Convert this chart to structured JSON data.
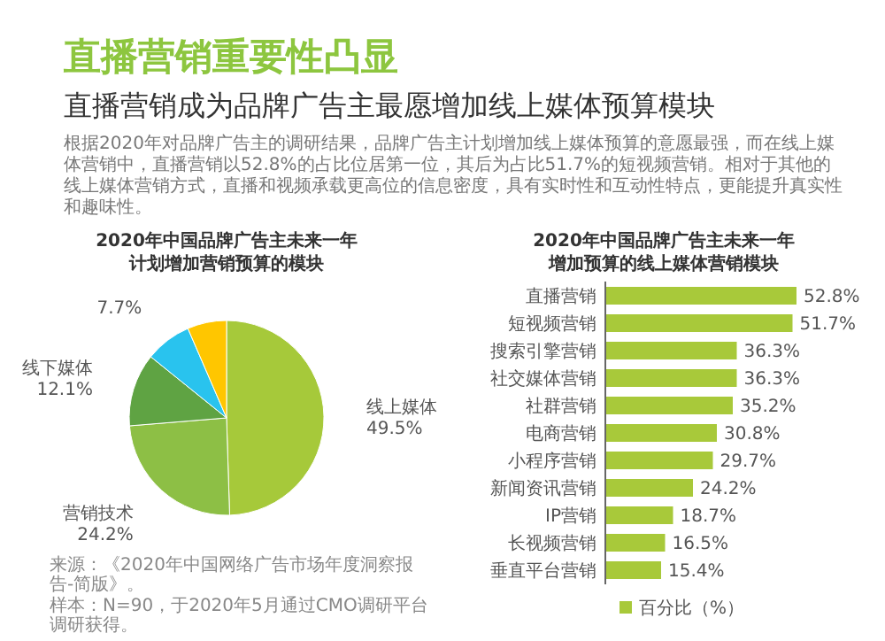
{
  "chart_data": [
    {
      "type": "other",
      "title": "直播营销重要性凸显",
      "subtitle": "直播营销成为品牌广告主最愿增加线上媒体预算模块",
      "annotations": [
        "根据2020年对品牌广告主的调研结果，品牌广告主计划增加线上媒体预算的意愿最强，而在线上媒体营销中，直播营销以52.8%的占比位居第一位，其后为占比51.7%的短视频营销。相对于其他的线上媒体营销方式，直播和视频承载更高位的信息密度，具有实时性和互动性特点，更能提升真实性和趣味性。"
      ]
    },
    {
      "type": "pie",
      "title": "2020年中国品牌广告主未来一年计划增加营销预算的模块",
      "categories": [
        "线上媒体",
        "营销技术",
        "线下媒体",
        null,
        null
      ],
      "values": [
        49.5,
        24.2,
        12.1,
        7.7,
        6.5
      ],
      "colors": [
        "#a6c93a",
        "#8dbf45",
        "#5fa343",
        "#29c3ee",
        "#ffc600"
      ],
      "value_labels": [
        "49.5%",
        "24.2%",
        "12.1%",
        "7.7%",
        null
      ],
      "annotations": [
        "来源：《2020年中国网络广告市场年度洞察报告-简版》。",
        "样本：N=90，于2020年5月通过CMO调研平台调研获得。"
      ]
    },
    {
      "type": "bar",
      "orientation": "horizontal",
      "title": "2020年中国品牌广告主未来一年增加预算的线上媒体营销模块",
      "categories": [
        "直播营销",
        "短视频营销",
        "搜索引擎营销",
        "社交媒体营销",
        "社群营销",
        "电商营销",
        "小程序营销",
        "新闻资讯营销",
        "IP营销",
        "长视频营销",
        "垂直平台营销"
      ],
      "legend": "bottom",
      "series": [
        {
          "name": "百分比（%）",
          "color": "#a8c93a",
          "values": [
            52.8,
            51.7,
            36.3,
            36.3,
            35.2,
            30.8,
            29.7,
            24.2,
            18.7,
            16.5,
            15.4
          ],
          "value_labels": [
            "52.8%",
            "51.7%",
            "36.3%",
            "36.3%",
            "35.2%",
            "30.8%",
            "29.7%",
            "24.2%",
            "18.7%",
            "16.5%",
            "15.4%"
          ]
        }
      ]
    }
  ]
}
